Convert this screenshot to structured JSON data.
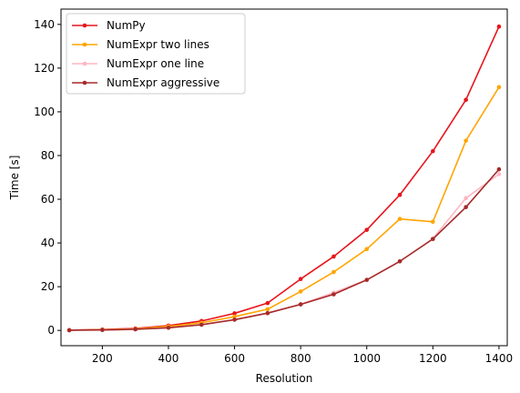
{
  "chart_data": {
    "type": "line",
    "title": "",
    "xlabel": "Resolution",
    "ylabel": "Time [s]",
    "xlim": [
      75,
      1425
    ],
    "ylim": [
      -7,
      147
    ],
    "xticks": [
      200,
      400,
      600,
      800,
      1000,
      1200,
      1400
    ],
    "yticks": [
      0,
      20,
      40,
      60,
      80,
      100,
      120,
      140
    ],
    "grid": false,
    "legend_position": "top-left",
    "x": [
      100,
      200,
      300,
      400,
      500,
      600,
      700,
      800,
      900,
      1000,
      1100,
      1200,
      1300,
      1400
    ],
    "series": [
      {
        "name": "NumPy",
        "color": "#e8141c",
        "values": [
          0.1,
          0.4,
          0.9,
          2.2,
          4.3,
          7.8,
          12.5,
          23.5,
          33.8,
          46.0,
          62.0,
          82.0,
          105.5,
          139.0
        ]
      },
      {
        "name": "NumExpr two lines",
        "color": "#ffa500",
        "values": [
          0.1,
          0.3,
          0.7,
          1.8,
          3.5,
          6.3,
          9.7,
          17.8,
          26.7,
          37.2,
          51.0,
          49.7,
          86.8,
          111.3
        ]
      },
      {
        "name": "NumExpr one line",
        "color": "#ffb6c1",
        "values": [
          0.1,
          0.2,
          0.5,
          1.2,
          2.6,
          4.9,
          7.9,
          12.0,
          17.3,
          23.1,
          31.6,
          42.0,
          60.5,
          71.5
        ]
      },
      {
        "name": "NumExpr aggressive",
        "color": "#a52a2a",
        "values": [
          0.1,
          0.2,
          0.5,
          1.2,
          2.6,
          4.9,
          7.9,
          11.9,
          16.5,
          23.1,
          31.6,
          41.8,
          56.4,
          73.7
        ]
      }
    ]
  }
}
